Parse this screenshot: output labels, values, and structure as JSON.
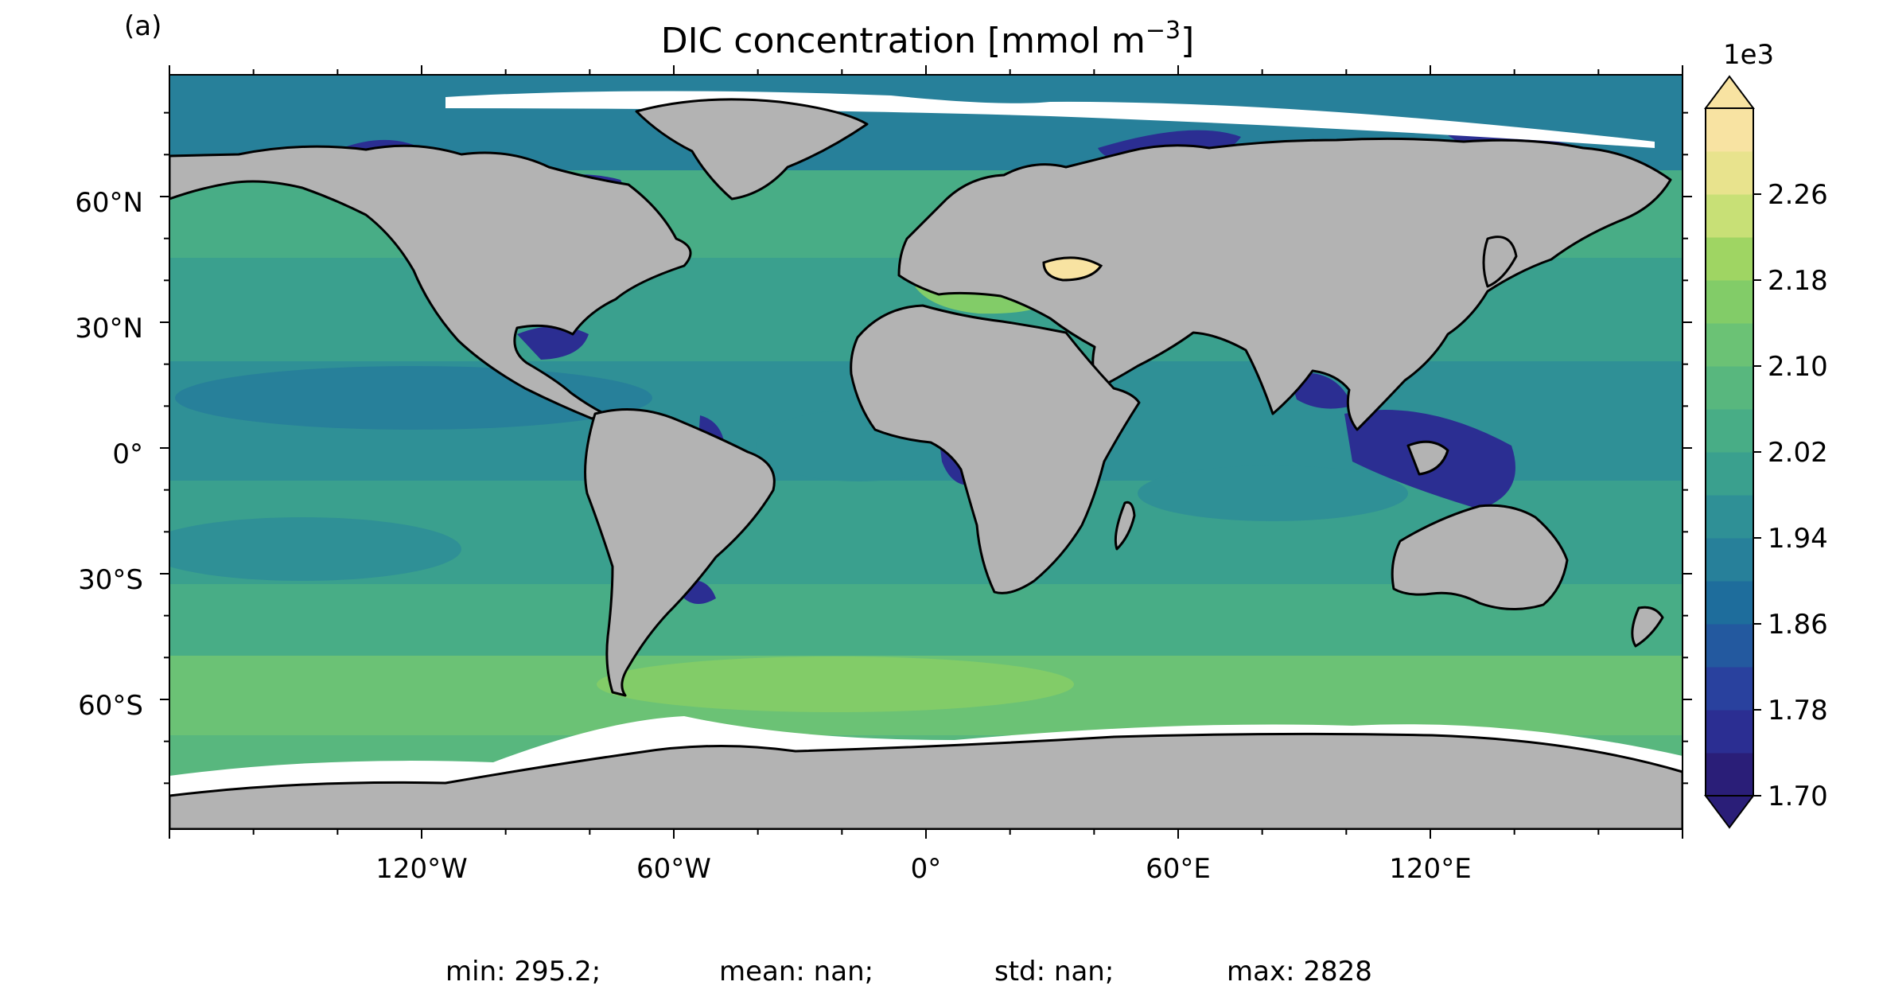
{
  "panel_label": "(a)",
  "title_main": "DIC concentration [mmol m",
  "title_sup": "−3",
  "title_end": "]",
  "colorbar": {
    "multiplier": "1e3",
    "ticks": [
      "2.26",
      "2.18",
      "2.10",
      "2.02",
      "1.94",
      "1.86",
      "1.78",
      "1.70"
    ],
    "colors": [
      "#2a1e78",
      "#2b2e92",
      "#29419e",
      "#23599f",
      "#1e6d9c",
      "#27809a",
      "#2f9096",
      "#3aa08e",
      "#48ad86",
      "#58b77e",
      "#6bc275",
      "#82cc68",
      "#9fd563",
      "#c8e076",
      "#e8e38d",
      "#f8e3a2"
    ]
  },
  "map": {
    "lat_labels": [
      "60°N",
      "30°N",
      "0°",
      "30°S",
      "60°S"
    ],
    "lon_labels": [
      "120°W",
      "60°W",
      "0°",
      "60°E",
      "120°E"
    ],
    "land_color": "#b3b3b3",
    "ocean_color": "#3aa08e"
  },
  "stats": {
    "min": "min: 295.2;",
    "mean": "mean: nan;",
    "std": "std: nan;",
    "max": "max: 2828"
  }
}
